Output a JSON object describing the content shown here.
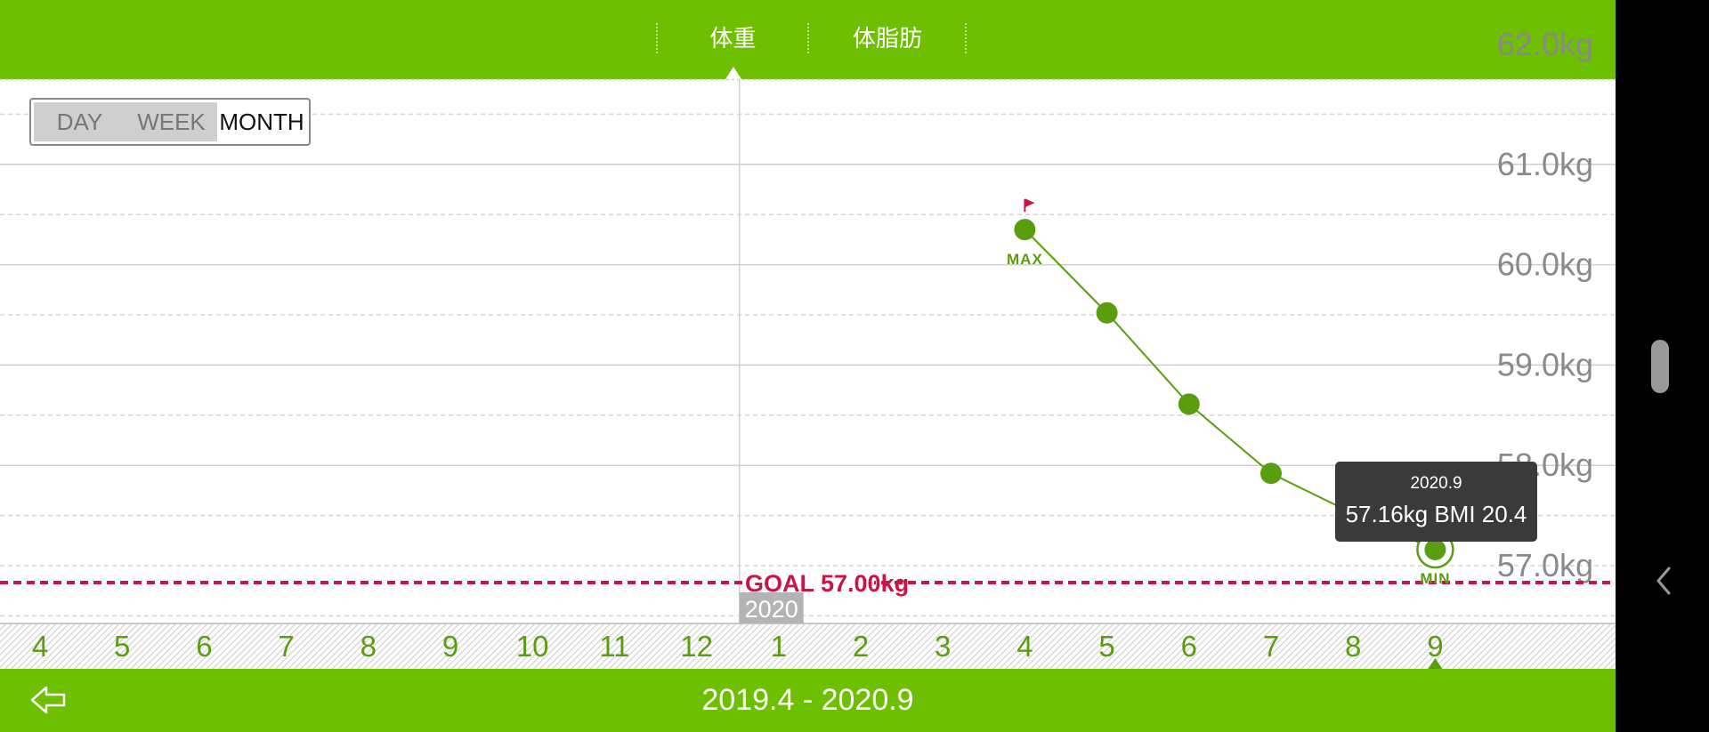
{
  "tabs": [
    {
      "label": "体重",
      "active": true
    },
    {
      "label": "体脂肪",
      "active": false
    }
  ],
  "period_selector": {
    "options": [
      "DAY",
      "WEEK",
      "MONTH"
    ],
    "selected": "MONTH"
  },
  "colors": {
    "brand_green": "#6ebf00",
    "series_green": "#5a9e10",
    "goal_red": "#cc1444",
    "tooltip_bg": "#3a3a3a"
  },
  "chart_data": {
    "type": "line",
    "y_tick_labels": [
      "61.0kg",
      "60.0kg",
      "59.0kg",
      "58.0kg",
      "57.0kg"
    ],
    "y_ticks": [
      61,
      60,
      59,
      58,
      57
    ],
    "ylim": [
      56.6,
      62.0
    ],
    "unit": "kg",
    "x_categories": [
      "4",
      "5",
      "6",
      "7",
      "8",
      "9",
      "10",
      "11",
      "12",
      "1",
      "2",
      "3",
      "4",
      "5",
      "6",
      "7",
      "8",
      "9"
    ],
    "year_marker": {
      "label": "2020",
      "before_index": 9
    },
    "series": [
      {
        "points": [
          {
            "index": 12,
            "value": 60.35
          },
          {
            "index": 13,
            "value": 59.52
          },
          {
            "index": 14,
            "value": 58.61
          },
          {
            "index": 15,
            "value": 57.92
          },
          {
            "index": 16,
            "value": 57.52
          },
          {
            "index": 17,
            "value": 57.16
          }
        ]
      }
    ],
    "max_label": "MAX",
    "min_label": "MIN",
    "max_index": 12,
    "min_index": 17,
    "goal": {
      "label": "GOAL 57.00kg",
      "value": 57.0
    },
    "grid": true,
    "tooltip": {
      "date": "2020.9",
      "value_text": "57.16kg  BMI 20.4"
    },
    "selected_index": 17
  },
  "bottom": {
    "range_label": "2019.4 - 2020.9"
  }
}
